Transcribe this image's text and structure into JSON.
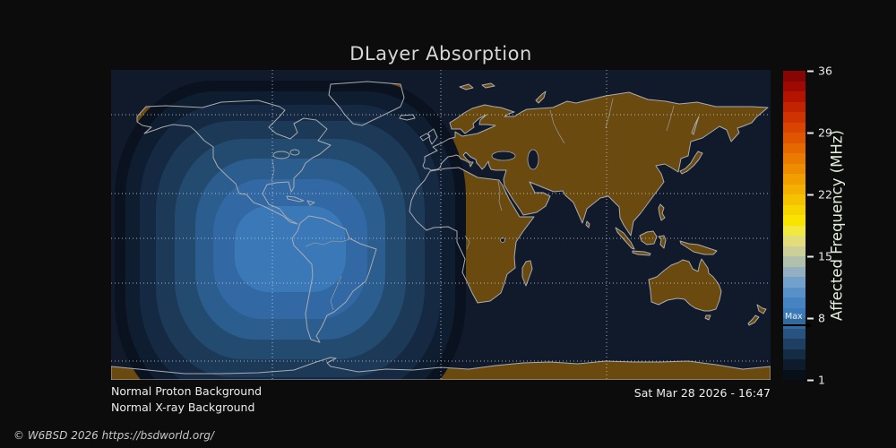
{
  "title": "DLayer Absorption",
  "colorbar": {
    "label": "Affected Frequency (MHz)",
    "ticks": [
      "36",
      "29",
      "22",
      "15",
      "8",
      "1"
    ],
    "scale_range_mhz": [
      1,
      36
    ],
    "max_marker_label": "Max",
    "max_marker_tick": "8",
    "colors": [
      "#870505",
      "#9e0a03",
      "#b31400",
      "#c22300",
      "#cf3300",
      "#d94500",
      "#e05600",
      "#e66800",
      "#ea7a00",
      "#ee8c00",
      "#f19e00",
      "#f3b000",
      "#f5c200",
      "#f7d400",
      "#f8e400",
      "#f3e83e",
      "#e2dd7a",
      "#cbcf98",
      "#b0c0aa",
      "#94afc0",
      "#74a0cc",
      "#5a90c8",
      "#4583c2",
      "#3b7ab9",
      "#32699f",
      "#285380",
      "#1e3f61",
      "#152c45",
      "#0d1b2c",
      "#070f19"
    ]
  },
  "map": {
    "ocean_color": "#111a2b",
    "land_color": "#6b4a0f",
    "coastline_color": "#a8abb0",
    "grid_color": "#d0d4da",
    "absorption_band_colors": [
      "#0a1220",
      "#0f1d30",
      "#152a42",
      "#1c3a58",
      "#234b70",
      "#2b5d8e",
      "#3269a4",
      "#3a78b8"
    ]
  },
  "footer": {
    "proton_status": "Normal Proton Background",
    "xray_status": "Normal X-ray Background",
    "timestamp": "Sat Mar 28 2026 - 16:47",
    "copyright": "© W6BSD 2026 https://bsdworld.org/"
  }
}
